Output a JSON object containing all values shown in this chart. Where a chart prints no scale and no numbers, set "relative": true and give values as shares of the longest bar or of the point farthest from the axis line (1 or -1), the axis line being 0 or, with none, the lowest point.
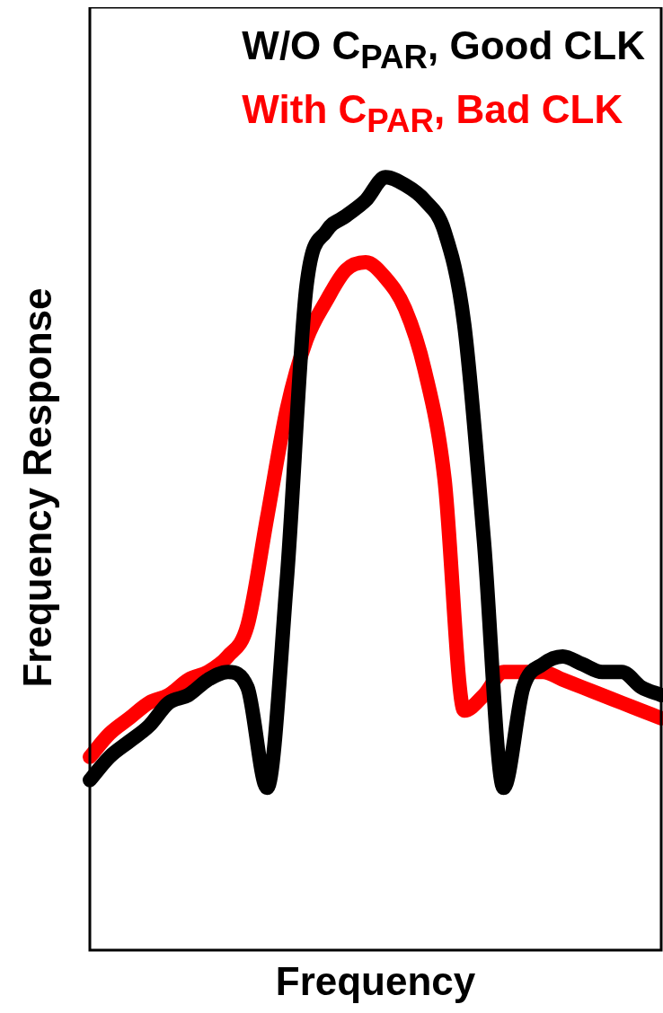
{
  "chart_data": {
    "type": "line",
    "relative": true,
    "xlabel": "Frequency",
    "ylabel": "Frequency Response",
    "legend": "top",
    "marker": "none",
    "line_style": "solid",
    "categories": [
      null,
      null,
      null,
      null,
      null,
      null,
      null,
      null,
      null,
      null,
      null,
      null,
      null,
      null,
      null,
      null,
      null,
      null,
      null,
      null,
      null,
      null,
      null,
      null,
      null,
      null,
      null,
      null,
      null,
      null
    ],
    "series": [
      {
        "name": "W/O C$_{PAR}$, Good CLK",
        "color": "#000000",
        "values": [
          0.22,
          0.25,
          0.27,
          0.29,
          0.32,
          0.33,
          0.35,
          0.36,
          0.34,
          0.21,
          0.48,
          0.86,
          0.93,
          0.95,
          0.97,
          1,
          0.99,
          0.97,
          0.93,
          0.81,
          0.53,
          0.21,
          0.34,
          0.37,
          0.38,
          0.37,
          0.36,
          0.36,
          0.34,
          0.33
        ]
      },
      {
        "name": "With C$_{PAR}$, Bad CLK",
        "color": "#ff0000",
        "values": [
          0.25,
          0.28,
          0.3,
          0.32,
          0.33,
          0.35,
          0.36,
          0.38,
          0.42,
          0.56,
          0.7,
          0.79,
          0.84,
          0.88,
          0.89,
          0.87,
          0.83,
          0.75,
          0.61,
          0.31,
          0.33,
          0.36,
          0.36,
          0.36,
          0.35,
          0.34,
          0.33,
          0.32,
          0.31,
          0.3
        ]
      }
    ]
  }
}
